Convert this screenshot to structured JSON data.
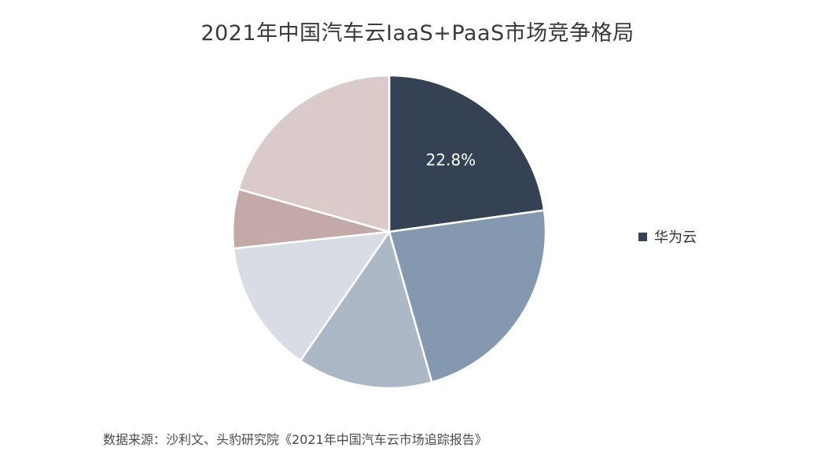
{
  "title": "2021年中国汽车云IaaS+PaaS市场竞争格局",
  "source": "数据来源：沙利文、头豹研究院《2021年中国汽车云市场追踪报告》",
  "chart_data": {
    "type": "pie",
    "title": "2021年中国汽车云IaaS+PaaS市场竞争格局",
    "start_angle": "12 o'clock",
    "direction": "clockwise",
    "slices": [
      {
        "name": "华为云",
        "value": 22.8,
        "label": "22.8%",
        "color": "#344253"
      },
      {
        "name": "",
        "value": 22.8,
        "label": "",
        "color": "#8499af"
      },
      {
        "name": "",
        "value": 14.0,
        "label": "",
        "color": "#adb8c7"
      },
      {
        "name": "",
        "value": 13.7,
        "label": "",
        "color": "#d7dce5"
      },
      {
        "name": "",
        "value": 6.1,
        "label": "",
        "color": "#c4a9a9"
      },
      {
        "name": "",
        "value": 20.6,
        "label": "",
        "color": "#dacbca"
      }
    ],
    "legend": {
      "position": "right",
      "entries": [
        {
          "name": "华为云",
          "color": "#344253"
        }
      ]
    }
  }
}
